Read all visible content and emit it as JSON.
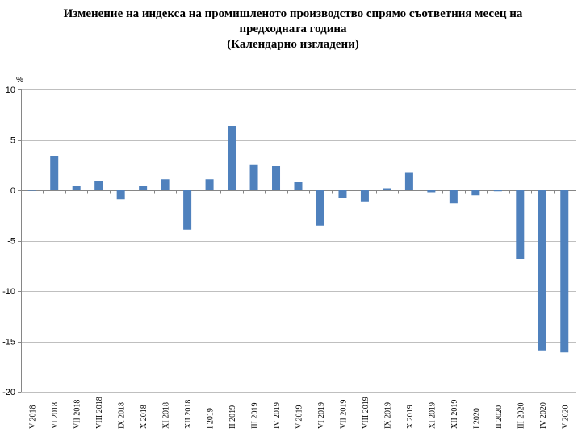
{
  "chart_data": {
    "type": "bar",
    "title_lines": [
      "Изменение на индекса на промишленото производство спрямо съответния месец на",
      "предходната година",
      "(Календарно изгладени)"
    ],
    "ylabel": "%",
    "ylim": [
      -20,
      10
    ],
    "yticks": [
      10,
      5,
      0,
      -5,
      -10,
      -15,
      -20
    ],
    "grid": true,
    "legend": "none",
    "bar_color": "#4f81bd",
    "categories": [
      "V 2018",
      "VI 2018",
      "VII 2018",
      "VIII 2018",
      "IX 2018",
      "X 2018",
      "XI 2018",
      "XII 2018",
      "I 2019",
      "II 2019",
      "III 2019",
      "IV 2019",
      "V 2019",
      "VI 2019",
      "VII 2019",
      "VIII 2019",
      "IX 2019",
      "X 2019",
      "XI 2019",
      "XII 2019",
      "I 2020",
      "II 2020",
      "III 2020",
      "IV 2020",
      "V 2020"
    ],
    "values": [
      0.0,
      3.4,
      0.4,
      0.9,
      -0.9,
      0.4,
      1.1,
      -3.9,
      1.1,
      6.4,
      2.5,
      2.4,
      0.8,
      -3.5,
      -0.8,
      -1.1,
      0.2,
      1.8,
      -0.2,
      -1.3,
      -0.5,
      -0.1,
      -6.8,
      -15.9,
      -16.1
    ]
  }
}
